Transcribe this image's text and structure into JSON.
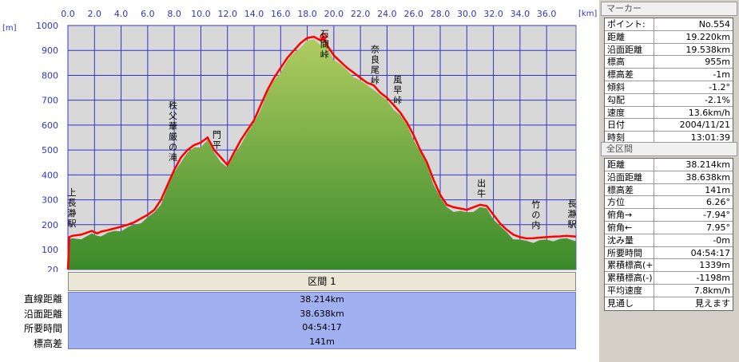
{
  "chart_data": {
    "type": "area",
    "title": "",
    "x_unit": "[km]",
    "y_unit": "[m]",
    "xlim": [
      0,
      38.214
    ],
    "ylim": [
      20,
      1000
    ],
    "x_ticks": [
      0.0,
      2.0,
      4.0,
      6.0,
      8.0,
      10.0,
      12.0,
      14.0,
      16.0,
      18.0,
      20.0,
      22.0,
      24.0,
      26.0,
      28.0,
      30.0,
      32.0,
      34.0,
      36.0
    ],
    "x_tick_labels": [
      "0.0",
      "2.0",
      "4.0",
      "6.0",
      "8.0",
      "10.0",
      "12.0",
      "14.0",
      "16.0",
      "18.0",
      "20.0",
      "22.0",
      "24.0",
      "26.0",
      "28.0",
      "30.0",
      "32.0",
      "34.0",
      "36.0"
    ],
    "y_ticks": [
      20,
      100,
      200,
      300,
      400,
      500,
      600,
      700,
      800,
      900,
      1000
    ],
    "y_tick_labels": [
      "20",
      "100",
      "200",
      "300",
      "400",
      "500",
      "600",
      "700",
      "800",
      "900",
      "1000"
    ],
    "grid": true,
    "series": [
      {
        "color": "#ff0000",
        "x": [
          0.0,
          0.1,
          0.3,
          1.0,
          1.8,
          2.2,
          2.5,
          3.0,
          3.5,
          4.0,
          4.5,
          5.0,
          5.5,
          6.0,
          6.5,
          7.0,
          7.5,
          8.0,
          8.5,
          9.0,
          9.5,
          10.0,
          10.5,
          11.0,
          11.5,
          12.0,
          12.5,
          13.0,
          13.5,
          14.0,
          14.5,
          15.0,
          15.5,
          16.0,
          16.5,
          17.0,
          17.5,
          18.0,
          18.5,
          19.0,
          19.22,
          19.5,
          20.0,
          20.5,
          21.0,
          21.5,
          22.0,
          22.5,
          23.0,
          23.5,
          24.0,
          24.5,
          25.0,
          25.5,
          26.0,
          26.5,
          27.0,
          27.5,
          28.0,
          28.5,
          29.0,
          29.5,
          30.0,
          30.5,
          31.0,
          31.5,
          32.0,
          32.5,
          33.0,
          33.5,
          34.0,
          34.5,
          35.0,
          35.5,
          36.0,
          36.5,
          37.0,
          37.5,
          38.214
        ],
        "y": [
          20,
          150,
          155,
          160,
          175,
          165,
          172,
          178,
          185,
          192,
          200,
          210,
          225,
          240,
          260,
          300,
          360,
          420,
          470,
          500,
          520,
          530,
          550,
          500,
          470,
          440,
          490,
          540,
          580,
          620,
          680,
          740,
          790,
          830,
          870,
          900,
          930,
          950,
          955,
          940,
          955,
          920,
          880,
          855,
          830,
          810,
          790,
          770,
          760,
          730,
          710,
          680,
          650,
          610,
          560,
          500,
          450,
          380,
          320,
          280,
          270,
          265,
          260,
          270,
          280,
          275,
          240,
          205,
          180,
          160,
          150,
          145,
          146,
          148,
          150,
          152,
          153,
          155,
          152
        ]
      }
    ],
    "annotations": [
      {
        "text": "上長瀞駅",
        "x": 0.3
      },
      {
        "text": "秩父華厳の滝",
        "x": 7.9
      },
      {
        "text": "門平",
        "x": 11.2
      },
      {
        "text": "石間峠",
        "x": 19.3
      },
      {
        "text": "奈良尾峠",
        "x": 23.1
      },
      {
        "text": "風早峠",
        "x": 24.8
      },
      {
        "text": "出牛",
        "x": 31.1
      },
      {
        "text": "竹の内",
        "x": 35.2
      },
      {
        "text": "長瀞駅",
        "x": 38.1
      }
    ],
    "marker_point": {
      "x": 19.22,
      "y": 955
    }
  },
  "section": {
    "header": "区間 1",
    "rows": [
      {
        "label": "直線距離",
        "value": "38.214km"
      },
      {
        "label": "沿面距離",
        "value": "38.638km"
      },
      {
        "label": "所要時間",
        "value": "04:54:17"
      },
      {
        "label": "標高差",
        "value": "141m"
      }
    ]
  },
  "marker_panel": {
    "title": "マーカー",
    "rows": [
      {
        "key": "ポイント:",
        "value": "No.554"
      },
      {
        "key": "距離",
        "value": "19.220km"
      },
      {
        "key": "沿面距離",
        "value": "19.538km"
      },
      {
        "key": "標高",
        "value": "955m"
      },
      {
        "key": "標高差",
        "value": "-1m"
      },
      {
        "key": "傾斜",
        "value": "-1.2°"
      },
      {
        "key": "勾配",
        "value": "-2.1%"
      },
      {
        "key": "速度",
        "value": "13.6km/h"
      },
      {
        "key": "日付",
        "value": "2004/11/21"
      },
      {
        "key": "時刻",
        "value": "13:01:39"
      }
    ]
  },
  "all_panel": {
    "title": "全区間",
    "rows": [
      {
        "key": "距離",
        "value": "38.214km"
      },
      {
        "key": "沿面距離",
        "value": "38.638km"
      },
      {
        "key": "標高差",
        "value": "141m"
      },
      {
        "key": "方位",
        "value": "6.26°"
      },
      {
        "key": "俯角→",
        "value": "-7.94°"
      },
      {
        "key": "俯角←",
        "value": "7.95°"
      },
      {
        "key": "沈み量",
        "value": "-0m"
      },
      {
        "key": "所要時間",
        "value": "04:54:17"
      },
      {
        "key": "累積標高(+)",
        "value": "1339m"
      },
      {
        "key": "累積標高(-)",
        "value": "-1198m"
      },
      {
        "key": "平均速度",
        "value": "7.8km/h"
      },
      {
        "key": "見通し",
        "value": "見えます"
      }
    ]
  }
}
